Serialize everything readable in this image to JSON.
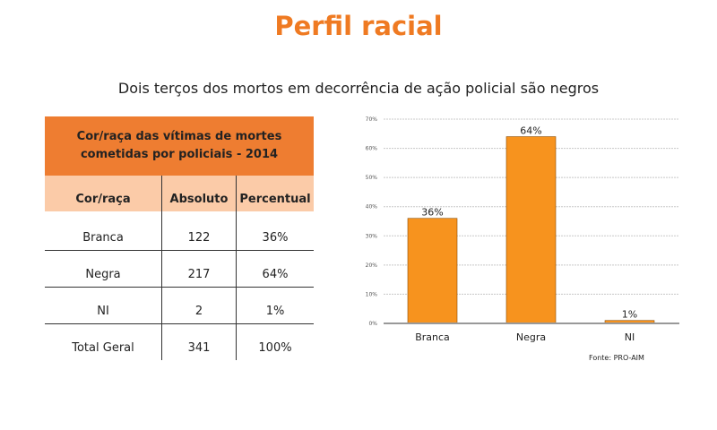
{
  "title": "Perfil racial",
  "subtitle": "Dois terços dos mortos em decorrência de ação policial são negros",
  "table": {
    "caption_line1": "Cor/raça das vítimas de mortes",
    "caption_line2": "cometidas por policiais - 2014",
    "headers": [
      "Cor/raça",
      "Absoluto",
      "Percentual"
    ],
    "rows": [
      [
        "Branca",
        "122",
        "36%"
      ],
      [
        "Negra",
        "217",
        "64%"
      ],
      [
        "NI",
        "2",
        "1%"
      ],
      [
        "Total Geral",
        "341",
        "100%"
      ]
    ]
  },
  "chart_data": {
    "type": "bar",
    "categories": [
      "Branca",
      "Negra",
      "NI"
    ],
    "values": [
      36,
      64,
      1
    ],
    "data_labels": [
      "36%",
      "64%",
      "1%"
    ],
    "yticks": [
      "0%",
      "10%",
      "20%",
      "30%",
      "40%",
      "50%",
      "60%",
      "70%"
    ],
    "ylim": [
      0,
      70
    ],
    "grid": true,
    "bar_color": "#f7931e",
    "source": "Fonte: PRO-AIM"
  }
}
